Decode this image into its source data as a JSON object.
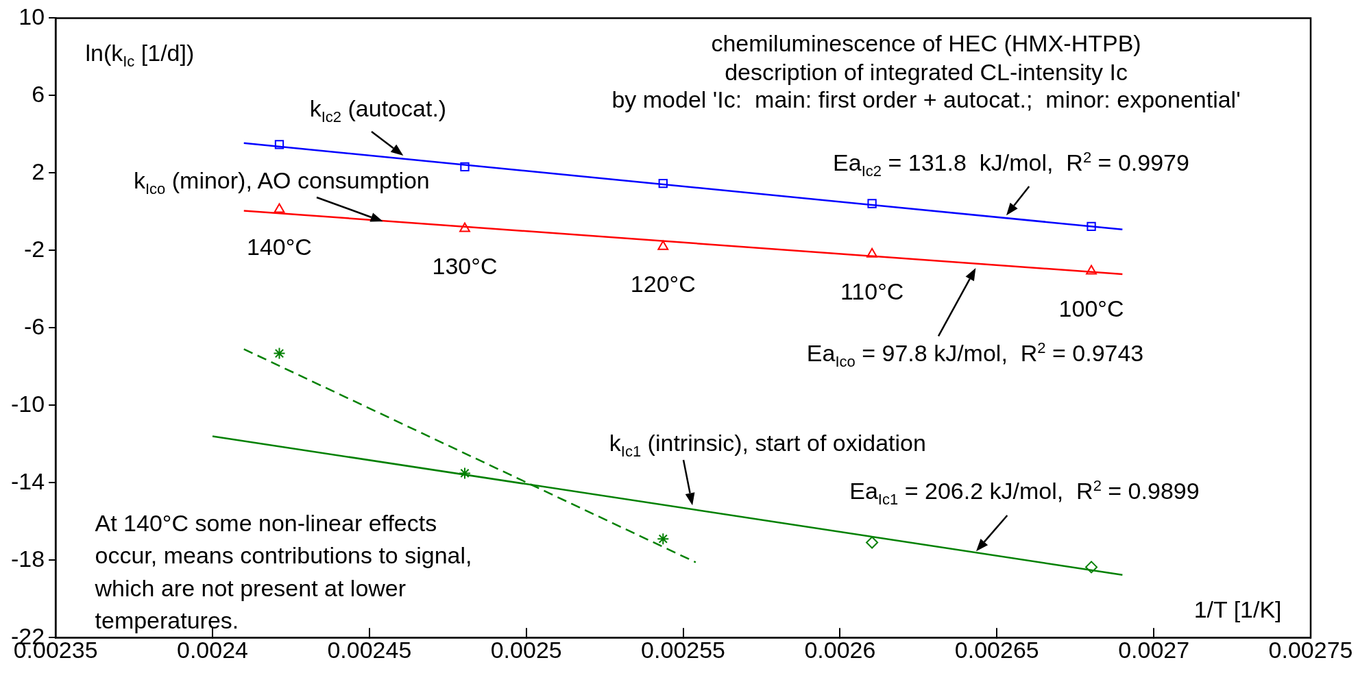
{
  "chart_data": {
    "type": "scatter",
    "title": "chemiluminescence of HEC (HMX-HTPB)",
    "subtitle": "description of integrated CL-intensity Ic\nby model 'Ic:  main: first order + autocat.;  minor: exponential'",
    "xlabel": "1/T [1/K]",
    "ylabel": "ln(k$_{Ic}$ [1/d])",
    "xlim": [
      0.00235,
      0.00275
    ],
    "xticks": [
      0.00235,
      0.0024,
      0.00245,
      0.0025,
      0.00255,
      0.0026,
      0.00265,
      0.0027,
      0.00275
    ],
    "ylim": [
      -22,
      10
    ],
    "yticks": [
      -22,
      -18,
      -14,
      -10,
      -6,
      -2,
      2,
      6,
      10
    ],
    "grid": false,
    "legend": false,
    "series": [
      {
        "type": "line",
        "color": "#0000ff",
        "marker": "none",
        "line_style": "solid",
        "x": [
          0.00241,
          0.00269
        ],
        "values": [
          3.54,
          -0.92
        ]
      },
      {
        "type": "scatter",
        "color": "#0000ff",
        "marker": "square",
        "x": [
          0.0024213,
          0.0024804,
          0.0025436,
          0.0026102,
          0.0026801
        ],
        "values": [
          3.47,
          2.32,
          1.46,
          0.42,
          -0.76
        ]
      },
      {
        "type": "line",
        "color": "#ff0000",
        "marker": "none",
        "line_style": "solid",
        "x": [
          0.00241,
          0.00269
        ],
        "values": [
          0.05,
          -3.23
        ]
      },
      {
        "type": "scatter",
        "color": "#ff0000",
        "marker": "triangle",
        "x": [
          0.0024213,
          0.0024804,
          0.0025436,
          0.0026102,
          0.0026801
        ],
        "values": [
          0.12,
          -0.87,
          -1.8,
          -2.19,
          -3.07
        ]
      },
      {
        "type": "line",
        "color": "#008000",
        "marker": "none",
        "line_style": "solid",
        "x": [
          0.0024,
          0.00269
        ],
        "values": [
          -11.6,
          -18.76
        ]
      },
      {
        "type": "line",
        "color": "#008000",
        "marker": "none",
        "line_style": "dashed",
        "x": [
          0.00241,
          0.002554
        ],
        "values": [
          -7.1,
          -18.11
        ]
      },
      {
        "type": "scatter",
        "color": "#008000",
        "marker": "cross",
        "x": [
          0.0024213,
          0.0024804,
          0.0025436
        ],
        "values": [
          -7.32,
          -13.51,
          -16.9
        ]
      },
      {
        "type": "scatter",
        "color": "#008000",
        "marker": "diamond",
        "x": [
          0.0026102,
          0.0026801
        ],
        "values": [
          -17.09,
          -18.36
        ]
      }
    ],
    "annotations": [
      "k$_{Ic2}$ (autocat.)",
      "k$_{Ico}$ (minor), AO consumption",
      "Ea$_{Ic2}$ = 131.8  kJ/mol,  R$^{2}$ = 0.9979",
      "Ea$_{Ico}$ = 97.8 kJ/mol,  R$^{2}$ = 0.9743",
      "k$_{Ic1}$ (intrinsic), start of oxidation",
      "Ea$_{Ic1}$ = 206.2 kJ/mol,  R$^{2}$ = 0.9899",
      "At 140°C some non-linear effects occur, means contributions to signal, which are not present at lower temperatures.",
      {
        "text": "140°C",
        "x": 0.0024213,
        "y": 0.12
      },
      {
        "text": "130°C",
        "x": 0.0024804,
        "y": -0.87
      },
      {
        "text": "120°C",
        "x": 0.0025436,
        "y": -1.8
      },
      {
        "text": "110°C",
        "x": 0.0026102,
        "y": -2.19
      },
      {
        "text": "100°C",
        "x": 0.0026801,
        "y": -3.07
      }
    ]
  }
}
